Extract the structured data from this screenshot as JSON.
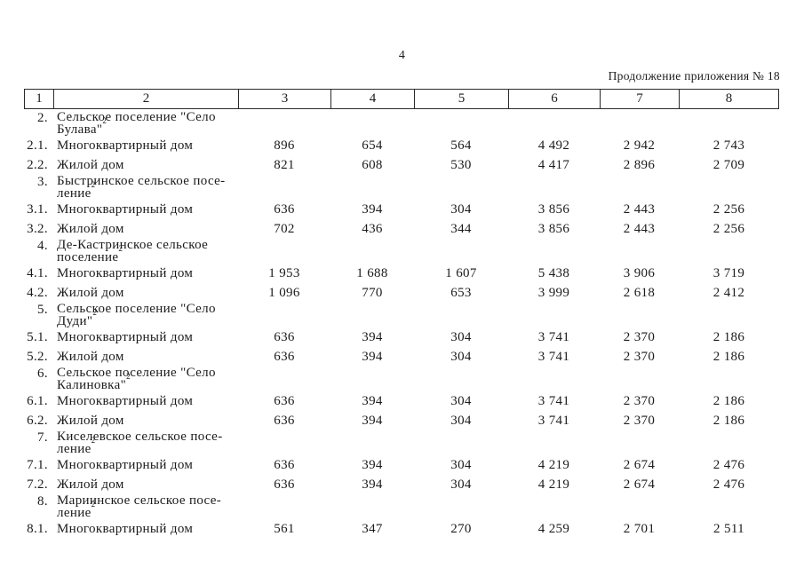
{
  "page": {
    "number": "4",
    "continuation_note": "Продолжение приложения № 18"
  },
  "table": {
    "column_headers": [
      "1",
      "2",
      "3",
      "4",
      "5",
      "6",
      "7",
      "8"
    ],
    "rows": [
      {
        "type": "section",
        "num": "2.",
        "name_lines": [
          "Сельское поселение \"Село",
          "Булава\""
        ],
        "footnote": "2"
      },
      {
        "type": "data",
        "num": "2.1.",
        "name": "Многоквартирный дом",
        "values": [
          "896",
          "654",
          "564",
          "4 492",
          "2 942",
          "2 743"
        ]
      },
      {
        "type": "data",
        "num": "2.2.",
        "name": "Жилой дом",
        "values": [
          "821",
          "608",
          "530",
          "4 417",
          "2 896",
          "2 709"
        ]
      },
      {
        "type": "section",
        "num": "3.",
        "name_lines": [
          "Быстринское сельское посе-",
          "ление"
        ],
        "footnote": "2"
      },
      {
        "type": "data",
        "num": "3.1.",
        "name": "Многоквартирный дом",
        "values": [
          "636",
          "394",
          "304",
          "3 856",
          "2 443",
          "2 256"
        ]
      },
      {
        "type": "data",
        "num": "3.2.",
        "name": "Жилой дом",
        "values": [
          "702",
          "436",
          "344",
          "3 856",
          "2 443",
          "2 256"
        ]
      },
      {
        "type": "section",
        "num": "4.",
        "name_lines": [
          "Де-Кастринское сельское",
          "поселение"
        ],
        "footnote": "2"
      },
      {
        "type": "data",
        "num": "4.1.",
        "name": "Многоквартирный дом",
        "values": [
          "1 953",
          "1 688",
          "1 607",
          "5 438",
          "3 906",
          "3 719"
        ]
      },
      {
        "type": "data",
        "num": "4.2.",
        "name": "Жилой дом",
        "values": [
          "1 096",
          "770",
          "653",
          "3 999",
          "2 618",
          "2 412"
        ]
      },
      {
        "type": "section",
        "num": "5.",
        "name_lines": [
          "Сельское поселение \"Село",
          "Дуди\""
        ],
        "footnote": "2"
      },
      {
        "type": "data",
        "num": "5.1.",
        "name": "Многоквартирный дом",
        "values": [
          "636",
          "394",
          "304",
          "3 741",
          "2 370",
          "2 186"
        ]
      },
      {
        "type": "data",
        "num": "5.2.",
        "name": "Жилой дом",
        "values": [
          "636",
          "394",
          "304",
          "3 741",
          "2 370",
          "2 186"
        ]
      },
      {
        "type": "section",
        "num": "6.",
        "name_lines": [
          "Сельское поселение \"Село",
          "Калиновка\""
        ],
        "footnote": "2"
      },
      {
        "type": "data",
        "num": "6.1.",
        "name": "Многоквартирный дом",
        "values": [
          "636",
          "394",
          "304",
          "3 741",
          "2 370",
          "2 186"
        ]
      },
      {
        "type": "data",
        "num": "6.2.",
        "name": "Жилой дом",
        "values": [
          "636",
          "394",
          "304",
          "3 741",
          "2 370",
          "2 186"
        ]
      },
      {
        "type": "section",
        "num": "7.",
        "name_lines": [
          "Киселевское сельское посе-",
          "ление"
        ],
        "footnote": "2"
      },
      {
        "type": "data",
        "num": "7.1.",
        "name": "Многоквартирный дом",
        "values": [
          "636",
          "394",
          "304",
          "4 219",
          "2 674",
          "2 476"
        ]
      },
      {
        "type": "data",
        "num": "7.2.",
        "name": "Жилой дом",
        "values": [
          "636",
          "394",
          "304",
          "4 219",
          "2 674",
          "2 476"
        ]
      },
      {
        "type": "section",
        "num": "8.",
        "name_lines": [
          "Мариинское сельское посе-",
          "ление"
        ],
        "footnote": "2"
      },
      {
        "type": "data",
        "num": "8.1.",
        "name": "Многоквартирный дом",
        "values": [
          "561",
          "347",
          "270",
          "4 259",
          "2 701",
          "2 511"
        ]
      }
    ]
  }
}
